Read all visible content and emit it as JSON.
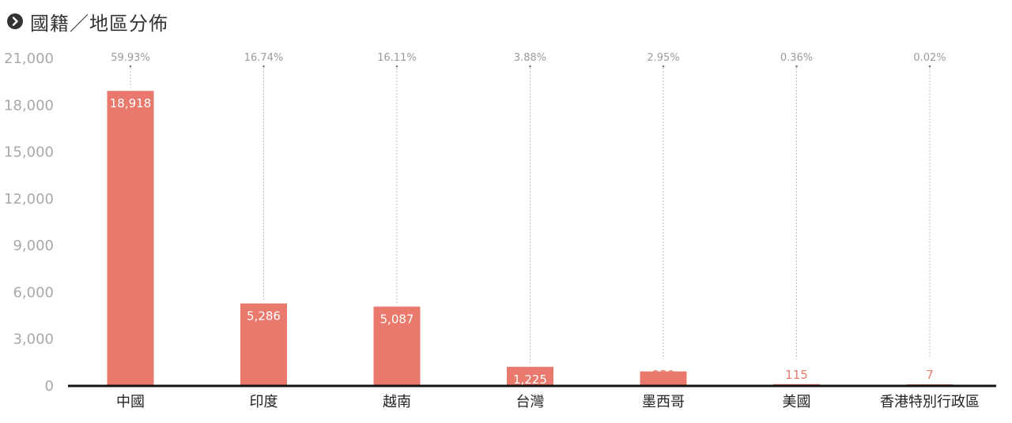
{
  "header": {
    "title": "國籍／地區分佈",
    "icon": "chevron-right-circle-icon"
  },
  "colors": {
    "bar": "#e8796c",
    "axis": "#111111",
    "ytick": "#a8a8a8",
    "leader": "#bdbdbd",
    "value_inside": "#ffffff",
    "value_outside": "#e8796c"
  },
  "chart_data": {
    "type": "bar",
    "categories": [
      "中國",
      "印度",
      "越南",
      "台灣",
      "墨西哥",
      "美國",
      "香港特別行政區"
    ],
    "values": [
      18918,
      5286,
      5087,
      1225,
      930,
      115,
      7
    ],
    "value_labels": [
      "18,918",
      "5,286",
      "5,087",
      "1,225",
      "930",
      "115",
      "7"
    ],
    "percent_labels": [
      "59.93%",
      "16.74%",
      "16.11%",
      "3.88%",
      "2.95%",
      "0.36%",
      "0.02%"
    ],
    "yticks": [
      0,
      3000,
      6000,
      9000,
      12000,
      15000,
      18000,
      21000
    ],
    "ytick_labels": [
      "0",
      "3,000",
      "6,000",
      "9,000",
      "12,000",
      "15,000",
      "18,000",
      "21,000"
    ],
    "ylim": [
      0,
      21000
    ],
    "grid": false,
    "legend": "none",
    "title": "國籍／地區分佈",
    "xlabel": "",
    "ylabel": ""
  }
}
